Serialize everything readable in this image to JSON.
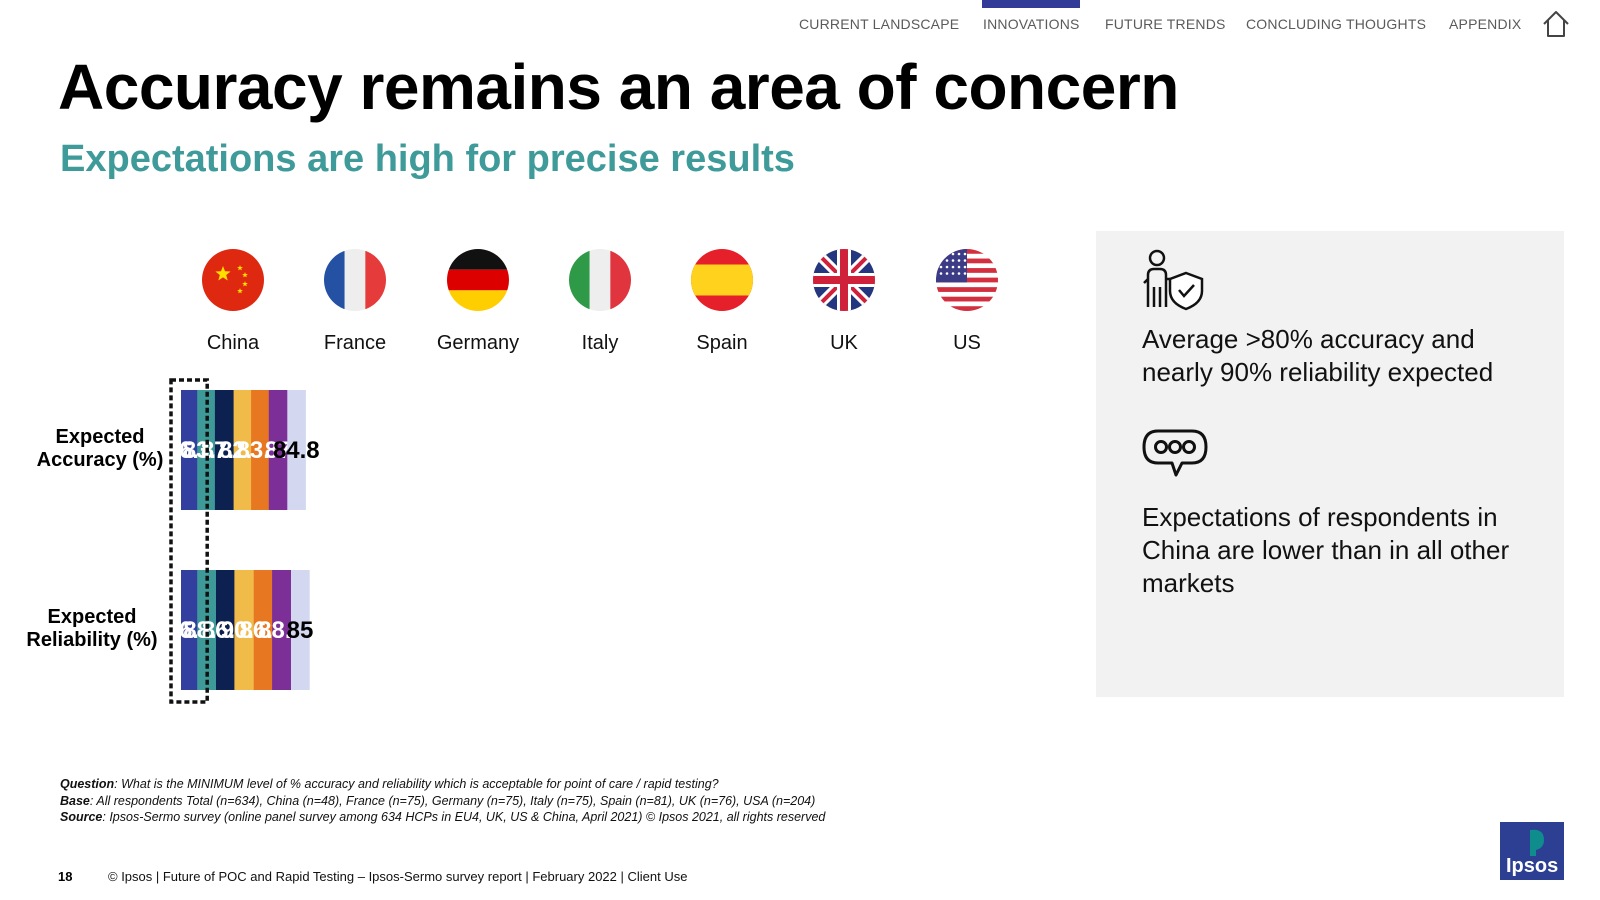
{
  "nav": {
    "items": [
      "CURRENT LANDSCAPE",
      "INNOVATIONS",
      "FUTURE TRENDS",
      "CONCLUDING THOUGHTS",
      "APPENDIX"
    ],
    "active": "INNOVATIONS",
    "home_icon": "home-icon",
    "accent_color": "#323b97"
  },
  "header": {
    "title": "Accuracy remains an area of concern",
    "subtitle": "Expectations are high for precise results",
    "subtitle_color": "#3f9a9a"
  },
  "chart_data": {
    "type": "bar",
    "orientation": "horizontal-stacked",
    "categories": [
      "China",
      "France",
      "Germany",
      "Italy",
      "Spain",
      "UK",
      "US"
    ],
    "flag_icons": [
      "china-flag-icon",
      "france-flag-icon",
      "germany-flag-icon",
      "italy-flag-icon",
      "spain-flag-icon",
      "uk-flag-icon",
      "us-flag-icon"
    ],
    "colors": [
      "#323f9e",
      "#3d9a98",
      "#0d2150",
      "#f1bb4a",
      "#e87722",
      "#7b2f97",
      "#d3d8f0"
    ],
    "label_colors": [
      "#ffffff",
      "#ffffff",
      "#ffffff",
      "#ffffff",
      "#ffffff",
      "#ffffff",
      "#000000"
    ],
    "series": [
      {
        "name": "Expected Accuracy (%)",
        "values": [
          76.2,
          83.4,
          87.6,
          82.4,
          83.5,
          87,
          84.8
        ]
      },
      {
        "name": "Expected Reliability (%)",
        "values": [
          76.4,
          88.3,
          86.7,
          90.6,
          86.7,
          88.5,
          85
        ]
      }
    ],
    "highlight": "China"
  },
  "panel": {
    "point1": "Average >80% accuracy and nearly 90% reliability expected",
    "point1_icon": "person-shield-icon",
    "point2": "Expectations of respondents in China are lower than in all other markets",
    "point2_icon": "speech-bubble-icon"
  },
  "notes": {
    "question_label": "Question",
    "question": ": What is the MINIMUM level of % accuracy and reliability which is acceptable for point of care / rapid testing?",
    "base_label": "Base",
    "base": ": All respondents Total (n=634), China (n=48), France (n=75), Germany (n=75), Italy (n=75), Spain (n=81), UK (n=76), USA (n=204)",
    "source_label": "Source",
    "source": ": Ipsos-Sermo survey (online panel survey among 634 HCPs in EU4, UK, US & China, April 2021) © Ipsos 2021, all rights reserved"
  },
  "footer": {
    "page_number": "18",
    "text": "© Ipsos | Future of POC and Rapid Testing – Ipsos-Sermo survey report | February 2022 | Client Use",
    "logo_text": "Ipsos",
    "logo_colors": [
      "#0f8c8c",
      "#2c3f92"
    ]
  }
}
